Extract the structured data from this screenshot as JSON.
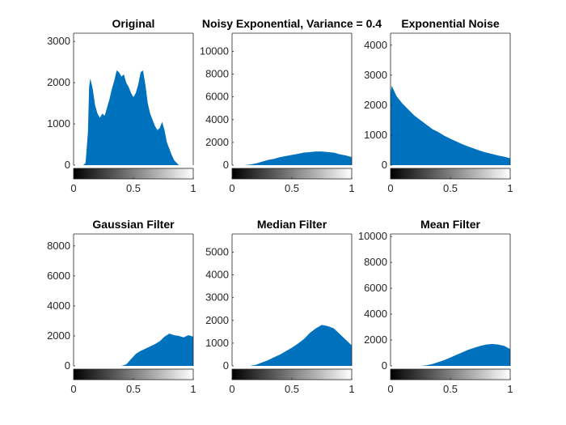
{
  "figure": {
    "background": "#ffffff",
    "bar_color": "#0072bd",
    "axis_color": "#262626"
  },
  "chart_data": [
    {
      "type": "bar",
      "title": "Original",
      "xlim": [
        0,
        1
      ],
      "ylim": [
        0,
        3200
      ],
      "xticks": [
        0,
        0.5,
        1
      ],
      "xtick_labels": [
        "0",
        "0.5",
        "1"
      ],
      "yticks": [
        0,
        1000,
        2000,
        3000
      ],
      "ytick_labels": [
        "0",
        "1000",
        "2000",
        "3000"
      ],
      "x": [
        0.04,
        0.08,
        0.1,
        0.12,
        0.13,
        0.14,
        0.16,
        0.18,
        0.2,
        0.22,
        0.24,
        0.26,
        0.28,
        0.3,
        0.32,
        0.34,
        0.36,
        0.38,
        0.4,
        0.42,
        0.44,
        0.46,
        0.48,
        0.5,
        0.52,
        0.54,
        0.56,
        0.58,
        0.6,
        0.62,
        0.64,
        0.66,
        0.68,
        0.7,
        0.72,
        0.74,
        0.76,
        0.78,
        0.8,
        0.82,
        0.84,
        0.86,
        0.88,
        0.9,
        0.92
      ],
      "values": [
        0,
        0,
        50,
        800,
        1900,
        2100,
        1850,
        1450,
        1250,
        1150,
        1250,
        1200,
        1400,
        1600,
        1850,
        2050,
        2300,
        2250,
        2150,
        2200,
        2000,
        1900,
        1750,
        1650,
        1750,
        1950,
        2250,
        2300,
        1950,
        1500,
        1250,
        1100,
        950,
        850,
        900,
        1050,
        850,
        550,
        400,
        250,
        120,
        60,
        0,
        0,
        0
      ]
    },
    {
      "type": "bar",
      "title": "Noisy Exponential, Variance = 0.4",
      "xlim": [
        0,
        1
      ],
      "ylim": [
        0,
        11600
      ],
      "xticks": [
        0,
        0.5,
        1
      ],
      "xtick_labels": [
        "0",
        "0.5",
        "1"
      ],
      "yticks": [
        0,
        2000,
        4000,
        6000,
        8000,
        10000
      ],
      "ytick_labels": [
        "0",
        "2000",
        "4000",
        "6000",
        "8000",
        "10000"
      ],
      "x": [
        0.1,
        0.15,
        0.2,
        0.25,
        0.3,
        0.35,
        0.4,
        0.45,
        0.5,
        0.55,
        0.6,
        0.65,
        0.7,
        0.75,
        0.8,
        0.85,
        0.9,
        0.95,
        1.0
      ],
      "values": [
        0,
        50,
        150,
        300,
        450,
        550,
        700,
        800,
        900,
        1000,
        1100,
        1150,
        1200,
        1200,
        1150,
        1100,
        950,
        850,
        700
      ]
    },
    {
      "type": "bar",
      "title": "Exponential Noise",
      "xlim": [
        0,
        1
      ],
      "ylim": [
        0,
        4400
      ],
      "xticks": [
        0,
        0.5,
        1
      ],
      "xtick_labels": [
        "0",
        "0.5",
        "1"
      ],
      "yticks": [
        0,
        1000,
        2000,
        3000,
        4000
      ],
      "ytick_labels": [
        "0",
        "1000",
        "2000",
        "3000",
        "4000"
      ],
      "x": [
        0.0,
        0.01,
        0.05,
        0.1,
        0.15,
        0.2,
        0.25,
        0.3,
        0.35,
        0.4,
        0.45,
        0.5,
        0.55,
        0.6,
        0.65,
        0.7,
        0.75,
        0.8,
        0.85,
        0.9,
        0.95,
        1.0
      ],
      "values": [
        2400,
        2650,
        2300,
        2050,
        1850,
        1650,
        1500,
        1350,
        1200,
        1100,
        980,
        880,
        790,
        700,
        620,
        550,
        480,
        420,
        370,
        320,
        280,
        230
      ]
    },
    {
      "type": "bar",
      "title": "Gaussian Filter",
      "xlim": [
        0,
        1
      ],
      "ylim": [
        0,
        8800
      ],
      "xticks": [
        0,
        0.5,
        1
      ],
      "xtick_labels": [
        "0",
        "0.5",
        "1"
      ],
      "yticks": [
        0,
        2000,
        4000,
        6000,
        8000
      ],
      "ytick_labels": [
        "0",
        "2000",
        "4000",
        "6000",
        "8000"
      ],
      "x": [
        0.4,
        0.44,
        0.48,
        0.52,
        0.56,
        0.6,
        0.64,
        0.68,
        0.72,
        0.76,
        0.8,
        0.84,
        0.88,
        0.92,
        0.96,
        1.0
      ],
      "values": [
        0,
        100,
        450,
        800,
        1000,
        1150,
        1300,
        1450,
        1650,
        1950,
        2150,
        2050,
        2000,
        1900,
        2050,
        1950
      ]
    },
    {
      "type": "bar",
      "title": "Median Filter",
      "xlim": [
        0,
        1
      ],
      "ylim": [
        0,
        5800
      ],
      "xticks": [
        0,
        0.5,
        1
      ],
      "xtick_labels": [
        "0",
        "0.5",
        "1"
      ],
      "yticks": [
        0,
        1000,
        2000,
        3000,
        4000,
        5000
      ],
      "ytick_labels": [
        "0",
        "1000",
        "2000",
        "3000",
        "4000",
        "5000"
      ],
      "x": [
        0.15,
        0.2,
        0.25,
        0.3,
        0.35,
        0.4,
        0.45,
        0.5,
        0.55,
        0.6,
        0.65,
        0.7,
        0.75,
        0.8,
        0.85,
        0.9,
        0.95,
        1.0
      ],
      "values": [
        0,
        50,
        150,
        250,
        380,
        500,
        650,
        800,
        980,
        1180,
        1450,
        1650,
        1800,
        1750,
        1650,
        1400,
        1150,
        900
      ]
    },
    {
      "type": "bar",
      "title": "Mean Filter",
      "xlim": [
        0,
        1
      ],
      "ylim": [
        0,
        10200
      ],
      "xticks": [
        0,
        0.5,
        1
      ],
      "xtick_labels": [
        "0",
        "0.5",
        "1"
      ],
      "yticks": [
        0,
        2000,
        4000,
        6000,
        8000,
        10000
      ],
      "ytick_labels": [
        "0",
        "2000",
        "4000",
        "6000",
        "8000",
        "10000"
      ],
      "x": [
        0.25,
        0.3,
        0.35,
        0.4,
        0.45,
        0.5,
        0.55,
        0.6,
        0.65,
        0.7,
        0.75,
        0.8,
        0.85,
        0.9,
        0.95,
        1.0
      ],
      "values": [
        0,
        50,
        150,
        300,
        450,
        650,
        850,
        1050,
        1250,
        1400,
        1550,
        1650,
        1700,
        1650,
        1550,
        1300
      ]
    }
  ]
}
